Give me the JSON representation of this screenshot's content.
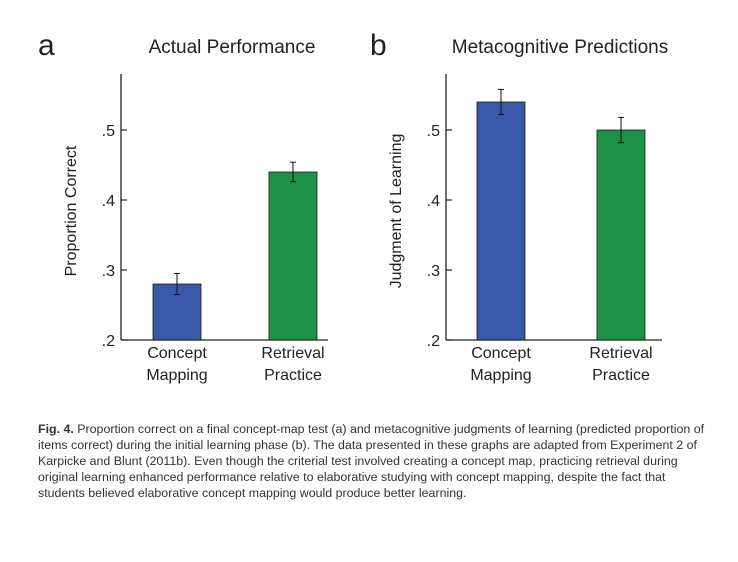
{
  "colors": {
    "concept_mapping": "#3a58a8",
    "retrieval_practice": "#1d9145",
    "axis": "#222222"
  },
  "chart_data": [
    {
      "type": "bar",
      "panel_letter": "a",
      "title": "Actual Performance",
      "ylabel": "Proportion Correct",
      "xlabel": "",
      "ylim": [
        0.2,
        0.58
      ],
      "yticks": [
        0.2,
        0.3,
        0.4,
        0.5
      ],
      "ytick_labels": [
        ".2",
        ".3",
        ".4",
        ".5"
      ],
      "categories": [
        [
          "Concept",
          "Mapping"
        ],
        [
          "Retrieval",
          "Practice"
        ]
      ],
      "values": [
        0.28,
        0.44
      ],
      "errors": [
        0.015,
        0.014
      ],
      "bar_colors": [
        "#3a58a8",
        "#1d9145"
      ],
      "grid": false,
      "legend": "none"
    },
    {
      "type": "bar",
      "panel_letter": "b",
      "title": "Metacognitive Predictions",
      "ylabel": "Judgment of Learning",
      "xlabel": "",
      "ylim": [
        0.2,
        0.58
      ],
      "yticks": [
        0.2,
        0.3,
        0.4,
        0.5
      ],
      "ytick_labels": [
        ".2",
        ".3",
        ".4",
        ".5"
      ],
      "categories": [
        [
          "Concept",
          "Mapping"
        ],
        [
          "Retrieval",
          "Practice"
        ]
      ],
      "values": [
        0.54,
        0.5
      ],
      "errors": [
        0.018,
        0.018
      ],
      "bar_colors": [
        "#3a58a8",
        "#1d9145"
      ],
      "grid": false,
      "legend": "none"
    }
  ],
  "caption": {
    "label": "Fig. 4.",
    "text": "Proportion correct on a final concept-map test (a) and metacognitive judgments of learning (predicted proportion of items correct) during the initial learning phase (b). The data presented in these graphs are adapted from Experiment 2 of Karpicke and Blunt (2011b). Even though the criterial test involved creating a concept map, practicing retrieval during original learning enhanced performance relative to elaborative studying with concept mapping, despite the fact that students believed elaborative concept mapping would produce better learning."
  }
}
